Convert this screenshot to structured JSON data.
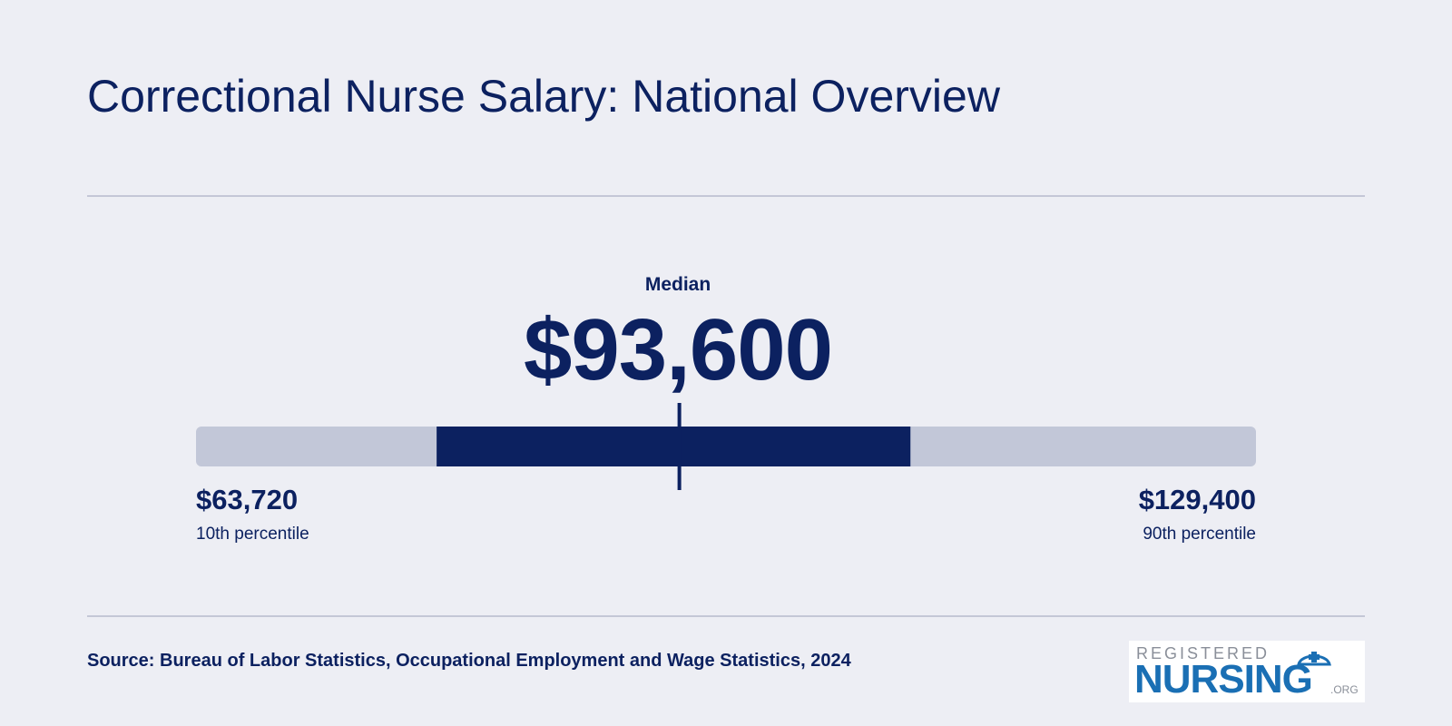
{
  "title": "Correctional Nurse Salary: National Overview",
  "chart_data": {
    "type": "range",
    "median_label": "Median",
    "median_value": 93600,
    "median_text": "$93,600",
    "range_min": 63720,
    "range_max": 129400,
    "low": {
      "value_text": "$63,720",
      "label": "10th percentile"
    },
    "high": {
      "value_text": "$129,400",
      "label": "90th percentile"
    },
    "iqr_fraction": [
      0.227,
      0.674
    ],
    "median_fraction": 0.456,
    "colors": {
      "track": "#c2c7d8",
      "iqr": "#0c2160",
      "median_marker": "#0c2160"
    }
  },
  "source": "Source: Bureau of Labor Statistics, Occupational Employment and Wage Statistics, 2024",
  "logo": {
    "top_text": "REGISTERED",
    "main_text": "NURSING",
    "suffix_text": ".ORG"
  },
  "colors": {
    "background": "#edeef4",
    "text": "#0c2160",
    "rule": "#c4c7d6",
    "logo_blue": "#1a6fb4"
  }
}
